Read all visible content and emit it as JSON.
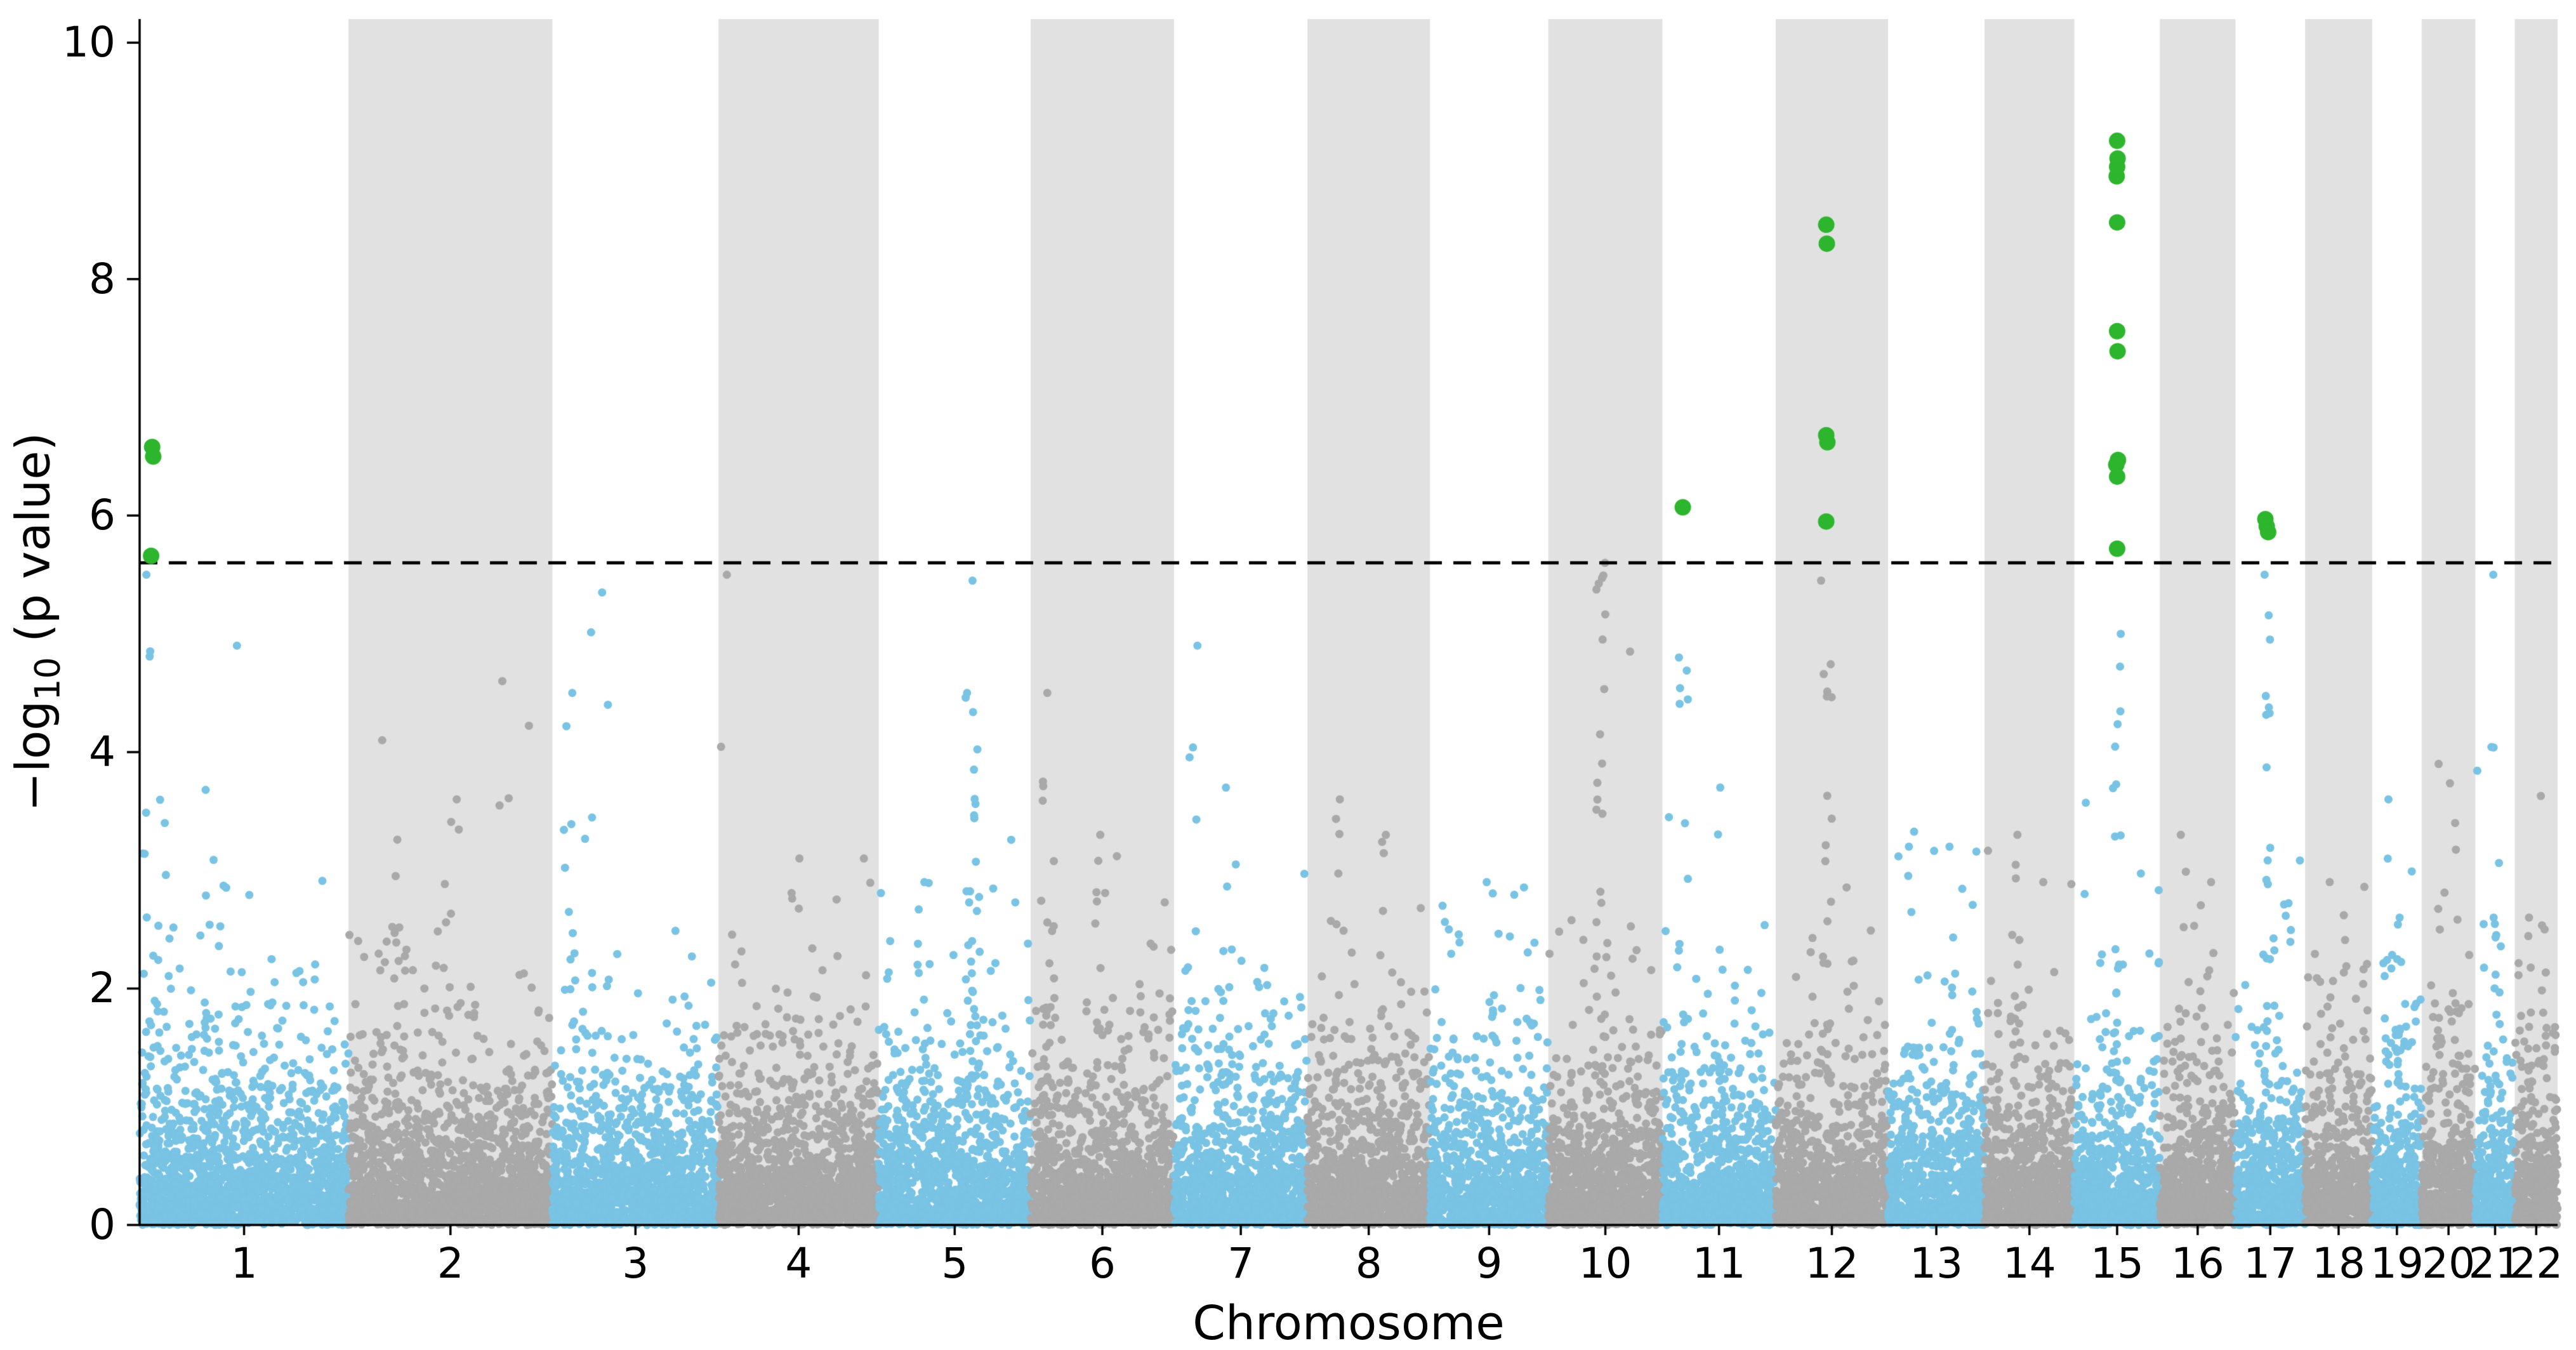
{
  "chart_data": {
    "type": "scatter",
    "variant": "manhattan-plot",
    "title": "",
    "xlabel": "Chromosome",
    "ylabel": "−log10 (p value)",
    "ylabel_parts": {
      "prefix": "−log",
      "sub": "10",
      "suffix": " (p value)"
    },
    "ylim": [
      0,
      10.2
    ],
    "yticks": [
      0,
      2,
      4,
      6,
      8,
      10
    ],
    "threshold": 5.6,
    "grid": false,
    "legend": "none",
    "colors": {
      "point_odd_chr": "#79c3e4",
      "point_even_chr": "#a9a9a9",
      "significant": "#2db52d",
      "band": "#e1e1e1",
      "threshold_line": "#000000",
      "axis": "#000000",
      "text": "#000000",
      "background": "#ffffff"
    },
    "background": {
      "seed": 20240101,
      "points_per_mb": 7,
      "noise_max": 5.45
    },
    "chromosomes": [
      {
        "label": "1",
        "length": 249,
        "peaks": [
          {
            "pos": 0.06,
            "max": 5.5,
            "n": 16
          },
          {
            "pos": 0.42,
            "max": 4.9,
            "n": 5
          },
          {
            "pos": 0.12,
            "max": 3.4,
            "n": 8
          }
        ]
      },
      {
        "label": "2",
        "length": 243,
        "peaks": [
          {
            "pos": 0.2,
            "max": 4.1,
            "n": 10
          },
          {
            "pos": 0.5,
            "max": 3.6,
            "n": 8
          },
          {
            "pos": 0.75,
            "max": 4.6,
            "n": 3
          }
        ]
      },
      {
        "label": "3",
        "length": 198,
        "peaks": [
          {
            "pos": 0.1,
            "max": 4.5,
            "n": 10
          },
          {
            "pos": 0.28,
            "max": 5.35,
            "n": 4
          },
          {
            "pos": 0.33,
            "max": 4.4,
            "n": 6
          }
        ]
      },
      {
        "label": "4",
        "length": 191,
        "peaks": [
          {
            "pos": 0.05,
            "max": 5.5,
            "n": 3
          },
          {
            "pos": 0.5,
            "max": 3.1,
            "n": 8
          },
          {
            "pos": 0.9,
            "max": 3.1,
            "n": 5
          }
        ]
      },
      {
        "label": "5",
        "length": 181,
        "peaks": [
          {
            "pos": 0.6,
            "max": 5.45,
            "n": 3
          },
          {
            "pos": 0.62,
            "max": 4.5,
            "n": 30
          },
          {
            "pos": 0.3,
            "max": 2.9,
            "n": 12
          }
        ]
      },
      {
        "label": "6",
        "length": 171,
        "peaks": [
          {
            "pos": 0.12,
            "max": 4.5,
            "n": 20
          },
          {
            "pos": 0.5,
            "max": 3.3,
            "n": 10
          }
        ]
      },
      {
        "label": "7",
        "length": 159,
        "peaks": [
          {
            "pos": 0.15,
            "max": 4.9,
            "n": 10
          },
          {
            "pos": 0.4,
            "max": 3.7,
            "n": 10
          }
        ]
      },
      {
        "label": "8",
        "length": 146,
        "peaks": [
          {
            "pos": 0.25,
            "max": 3.6,
            "n": 8
          },
          {
            "pos": 0.6,
            "max": 3.3,
            "n": 8
          }
        ]
      },
      {
        "label": "9",
        "length": 141,
        "peaks": [
          {
            "pos": 0.5,
            "max": 2.9,
            "n": 8
          },
          {
            "pos": 0.2,
            "max": 2.5,
            "n": 8
          }
        ]
      },
      {
        "label": "10",
        "length": 136,
        "peaks": [
          {
            "pos": 0.45,
            "max": 5.6,
            "n": 25
          },
          {
            "pos": 0.75,
            "max": 4.85,
            "n": 6
          }
        ]
      },
      {
        "label": "11",
        "length": 135,
        "peaks": [
          {
            "pos": 0.18,
            "max": 4.8,
            "n": 12
          },
          {
            "pos": 0.5,
            "max": 3.7,
            "n": 8
          }
        ]
      },
      {
        "label": "12",
        "length": 134,
        "peaks": [
          {
            "pos": 0.45,
            "max": 5.45,
            "n": 25
          }
        ]
      },
      {
        "label": "13",
        "length": 115,
        "peaks": [
          {
            "pos": 0.25,
            "max": 3.2,
            "n": 6
          },
          {
            "pos": 0.65,
            "max": 3.2,
            "n": 6
          }
        ]
      },
      {
        "label": "14",
        "length": 107,
        "peaks": [
          {
            "pos": 0.35,
            "max": 3.3,
            "n": 8
          },
          {
            "pos": 0.7,
            "max": 2.9,
            "n": 6
          }
        ]
      },
      {
        "label": "15",
        "length": 102,
        "peaks": [
          {
            "pos": 0.5,
            "max": 5.0,
            "n": 22
          }
        ]
      },
      {
        "label": "16",
        "length": 90,
        "peaks": [
          {
            "pos": 0.3,
            "max": 3.3,
            "n": 8
          },
          {
            "pos": 0.7,
            "max": 2.9,
            "n": 6
          }
        ]
      },
      {
        "label": "17",
        "length": 83,
        "peaks": [
          {
            "pos": 0.45,
            "max": 5.5,
            "n": 22
          }
        ]
      },
      {
        "label": "18",
        "length": 80,
        "peaks": [
          {
            "pos": 0.4,
            "max": 2.9,
            "n": 6
          }
        ]
      },
      {
        "label": "19",
        "length": 59,
        "peaks": [
          {
            "pos": 0.3,
            "max": 3.6,
            "n": 6
          },
          {
            "pos": 0.55,
            "max": 2.6,
            "n": 10
          }
        ]
      },
      {
        "label": "20",
        "length": 64,
        "peaks": [
          {
            "pos": 0.35,
            "max": 3.9,
            "n": 7
          },
          {
            "pos": 0.65,
            "max": 3.4,
            "n": 6
          }
        ]
      },
      {
        "label": "21",
        "length": 47,
        "peaks": [
          {
            "pos": 0.45,
            "max": 5.5,
            "n": 3
          },
          {
            "pos": 0.5,
            "max": 2.6,
            "n": 10
          }
        ]
      },
      {
        "label": "22",
        "length": 51,
        "peaks": [
          {
            "pos": 0.35,
            "max": 2.6,
            "n": 8
          },
          {
            "pos": 0.7,
            "max": 2.5,
            "n": 6
          }
        ]
      }
    ],
    "significant_points": [
      {
        "chr": "1",
        "pos": 0.06,
        "y": 6.58
      },
      {
        "chr": "1",
        "pos": 0.065,
        "y": 6.5
      },
      {
        "chr": "1",
        "pos": 0.055,
        "y": 5.66
      },
      {
        "chr": "11",
        "pos": 0.18,
        "y": 6.07
      },
      {
        "chr": "12",
        "pos": 0.45,
        "y": 8.46
      },
      {
        "chr": "12",
        "pos": 0.455,
        "y": 8.3
      },
      {
        "chr": "12",
        "pos": 0.45,
        "y": 6.68
      },
      {
        "chr": "12",
        "pos": 0.46,
        "y": 6.62
      },
      {
        "chr": "12",
        "pos": 0.45,
        "y": 5.95
      },
      {
        "chr": "15",
        "pos": 0.5,
        "y": 9.17
      },
      {
        "chr": "15",
        "pos": 0.505,
        "y": 9.02
      },
      {
        "chr": "15",
        "pos": 0.5,
        "y": 8.95
      },
      {
        "chr": "15",
        "pos": 0.495,
        "y": 8.87
      },
      {
        "chr": "15",
        "pos": 0.5,
        "y": 8.48
      },
      {
        "chr": "15",
        "pos": 0.5,
        "y": 7.56
      },
      {
        "chr": "15",
        "pos": 0.505,
        "y": 7.39
      },
      {
        "chr": "15",
        "pos": 0.51,
        "y": 6.47
      },
      {
        "chr": "15",
        "pos": 0.49,
        "y": 6.43
      },
      {
        "chr": "15",
        "pos": 0.5,
        "y": 6.33
      },
      {
        "chr": "15",
        "pos": 0.5,
        "y": 5.72
      },
      {
        "chr": "17",
        "pos": 0.43,
        "y": 5.97
      },
      {
        "chr": "17",
        "pos": 0.45,
        "y": 5.91
      },
      {
        "chr": "17",
        "pos": 0.47,
        "y": 5.86
      }
    ]
  }
}
